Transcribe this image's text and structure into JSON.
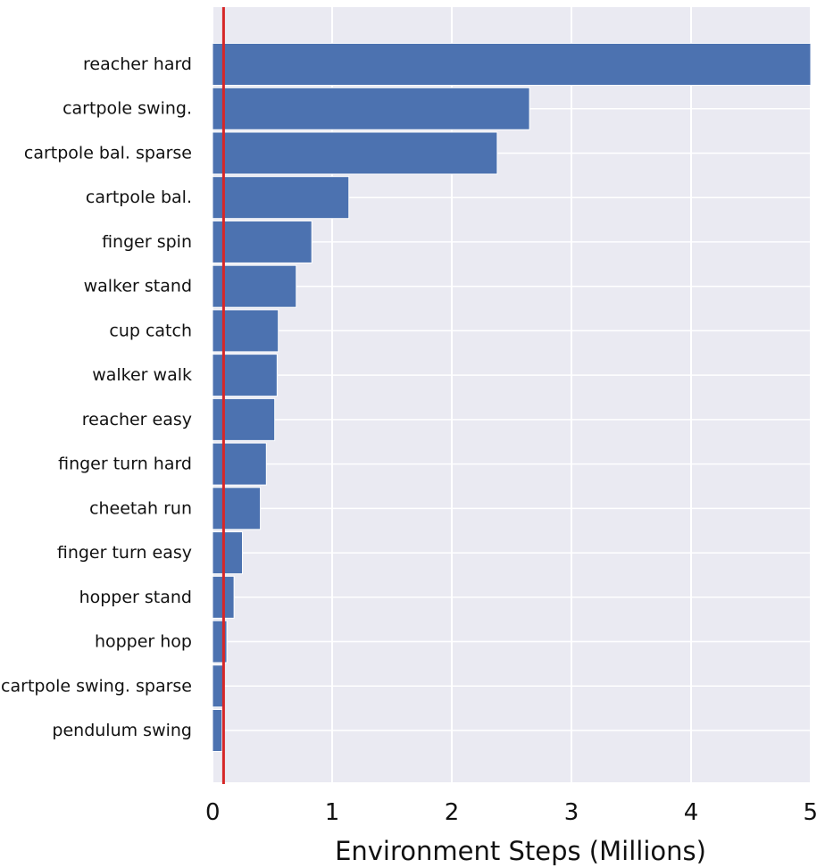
{
  "chart_data": {
    "type": "bar",
    "orientation": "horizontal",
    "title": "",
    "xlabel": "Environment Steps (Millions)",
    "ylabel": "",
    "xlim": [
      0,
      5
    ],
    "grid": true,
    "categories": [
      "reacher hard",
      "cartpole swing.",
      "cartpole bal. sparse",
      "cartpole bal.",
      "finger spin",
      "walker stand",
      "cup catch",
      "walker walk",
      "reacher easy",
      "finger turn hard",
      "cheetah run",
      "finger turn easy",
      "hopper stand",
      "hopper hop",
      "cartpole swing. sparse",
      "pendulum swing"
    ],
    "values": [
      5.0,
      2.65,
      2.38,
      1.14,
      0.83,
      0.7,
      0.55,
      0.54,
      0.52,
      0.45,
      0.4,
      0.25,
      0.18,
      0.12,
      0.09,
      0.08
    ],
    "xticks": [
      "0",
      "1",
      "2",
      "3",
      "4",
      "5"
    ],
    "reference_line": {
      "x": 0.1,
      "color": "#d62728"
    },
    "colors": {
      "bar": "#4c72b0",
      "background": "#eaeaf2",
      "grid": "#ffffff"
    }
  }
}
